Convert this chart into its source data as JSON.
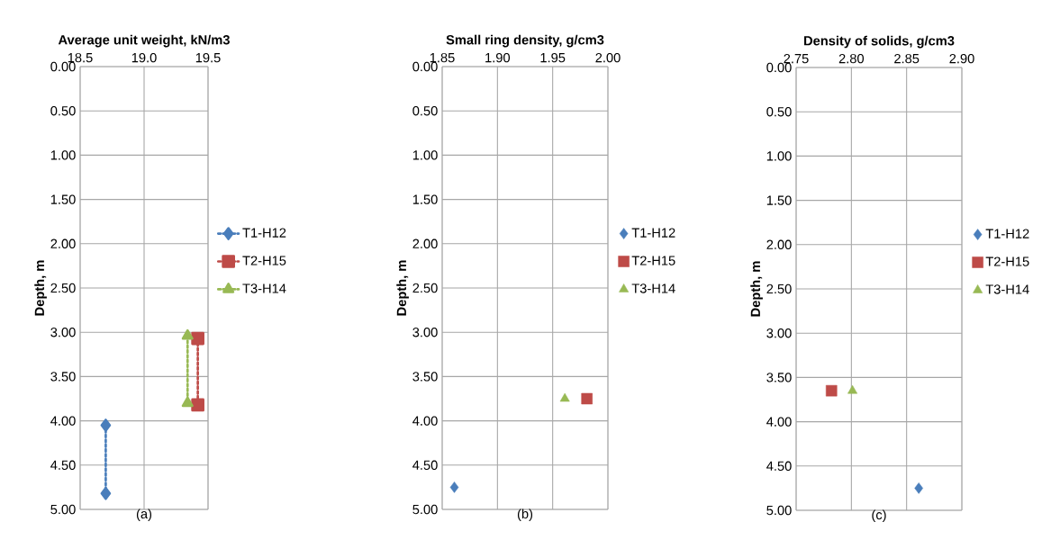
{
  "chart_data": [
    {
      "type": "line",
      "title": "(a)",
      "xlabel": "Average unit weight, kN/m3",
      "ylabel": "Depth, m",
      "xlim": [
        18.5,
        19.5
      ],
      "xticks": [
        {
          "value": 18.5,
          "label": "18.5"
        },
        {
          "value": 19.0,
          "label": "19.0"
        },
        {
          "value": 19.5,
          "label": "19.5"
        }
      ],
      "ylim": [
        5,
        0
      ],
      "yticks": [
        {
          "value": 0,
          "label": "0.00"
        },
        {
          "value": 0.5,
          "label": "0.50"
        },
        {
          "value": 1,
          "label": "1.00"
        },
        {
          "value": 1.5,
          "label": "1.50"
        },
        {
          "value": 2,
          "label": "2.00"
        },
        {
          "value": 2.5,
          "label": "2.50"
        },
        {
          "value": 3,
          "label": "3.00"
        },
        {
          "value": 3.5,
          "label": "3.50"
        },
        {
          "value": 4,
          "label": "4.00"
        },
        {
          "value": 4.5,
          "label": "4.50"
        },
        {
          "value": 5,
          "label": "5.00"
        }
      ],
      "grid": true,
      "legend": "right",
      "line_style": "dotted",
      "series": [
        {
          "name": "T1-H12",
          "color": "#4a7ebb",
          "marker": "diamond",
          "x": [
            18.7,
            18.7
          ],
          "values": [
            4.05,
            4.82
          ]
        },
        {
          "name": "T2-H15",
          "color": "#be4b48",
          "marker": "square",
          "x": [
            19.42,
            19.42
          ],
          "values": [
            3.07,
            3.82
          ]
        },
        {
          "name": "T3-H14",
          "color": "#98b954",
          "marker": "triangle",
          "x": [
            19.34,
            19.34
          ],
          "values": [
            3.04,
            3.8
          ]
        }
      ]
    },
    {
      "type": "scatter",
      "title": "(b)",
      "xlabel": "Small ring density, g/cm3",
      "ylabel": "Depth, m",
      "xlim": [
        1.85,
        2.0
      ],
      "xticks": [
        1.85,
        {
          "value": 1.9,
          "label": "1.90"
        },
        1.95,
        {
          "value": 2.0,
          "label": "2.00"
        }
      ],
      "ylim": [
        5,
        0
      ],
      "yticks": [
        {
          "value": 0,
          "label": "0.00"
        },
        {
          "value": 0.5,
          "label": "0.50"
        },
        {
          "value": 1,
          "label": "1.00"
        },
        {
          "value": 1.5,
          "label": "1.50"
        },
        {
          "value": 2,
          "label": "2.00"
        },
        {
          "value": 2.5,
          "label": "2.50"
        },
        {
          "value": 3,
          "label": "3.00"
        },
        {
          "value": 3.5,
          "label": "3.50"
        },
        {
          "value": 4,
          "label": "4.00"
        },
        {
          "value": 4.5,
          "label": "4.50"
        },
        {
          "value": 5,
          "label": "5.00"
        }
      ],
      "grid": true,
      "legend": "right",
      "series": [
        {
          "name": "T1-H12",
          "color": "#4a7ebb",
          "marker": "diamond",
          "x": [
            1.861
          ],
          "values": [
            4.75
          ]
        },
        {
          "name": "T2-H15",
          "color": "#be4b48",
          "marker": "square",
          "x": [
            1.981
          ],
          "values": [
            3.75
          ]
        },
        {
          "name": "T3-H14",
          "color": "#98b954",
          "marker": "triangle",
          "x": [
            1.961
          ],
          "values": [
            3.75
          ]
        }
      ]
    },
    {
      "type": "scatter",
      "title": "(c)",
      "xlabel": "Density of solids, g/cm3",
      "ylabel": "Depth, m",
      "xlim": [
        2.75,
        2.9
      ],
      "xticks": [
        2.75,
        {
          "value": 2.8,
          "label": "2.80"
        },
        2.85,
        {
          "value": 2.9,
          "label": "2.90"
        }
      ],
      "ylim": [
        5,
        0
      ],
      "yticks": [
        {
          "value": 0,
          "label": "0.00"
        },
        {
          "value": 0.5,
          "label": "0.50"
        },
        {
          "value": 1,
          "label": "1.00"
        },
        {
          "value": 1.5,
          "label": "1.50"
        },
        {
          "value": 2,
          "label": "2.00"
        },
        {
          "value": 2.5,
          "label": "2.50"
        },
        {
          "value": 3,
          "label": "3.00"
        },
        {
          "value": 3.5,
          "label": "3.50"
        },
        {
          "value": 4,
          "label": "4.00"
        },
        {
          "value": 4.5,
          "label": "4.50"
        },
        {
          "value": 5,
          "label": "5.00"
        }
      ],
      "grid": true,
      "legend": "right",
      "series": [
        {
          "name": "T1-H12",
          "color": "#4a7ebb",
          "marker": "diamond",
          "x": [
            2.861
          ],
          "values": [
            4.75
          ]
        },
        {
          "name": "T2-H15",
          "color": "#be4b48",
          "marker": "square",
          "x": [
            2.782
          ],
          "values": [
            3.65
          ]
        },
        {
          "name": "T3-H14",
          "color": "#98b954",
          "marker": "triangle",
          "x": [
            2.801
          ],
          "values": [
            3.65
          ]
        }
      ]
    }
  ]
}
